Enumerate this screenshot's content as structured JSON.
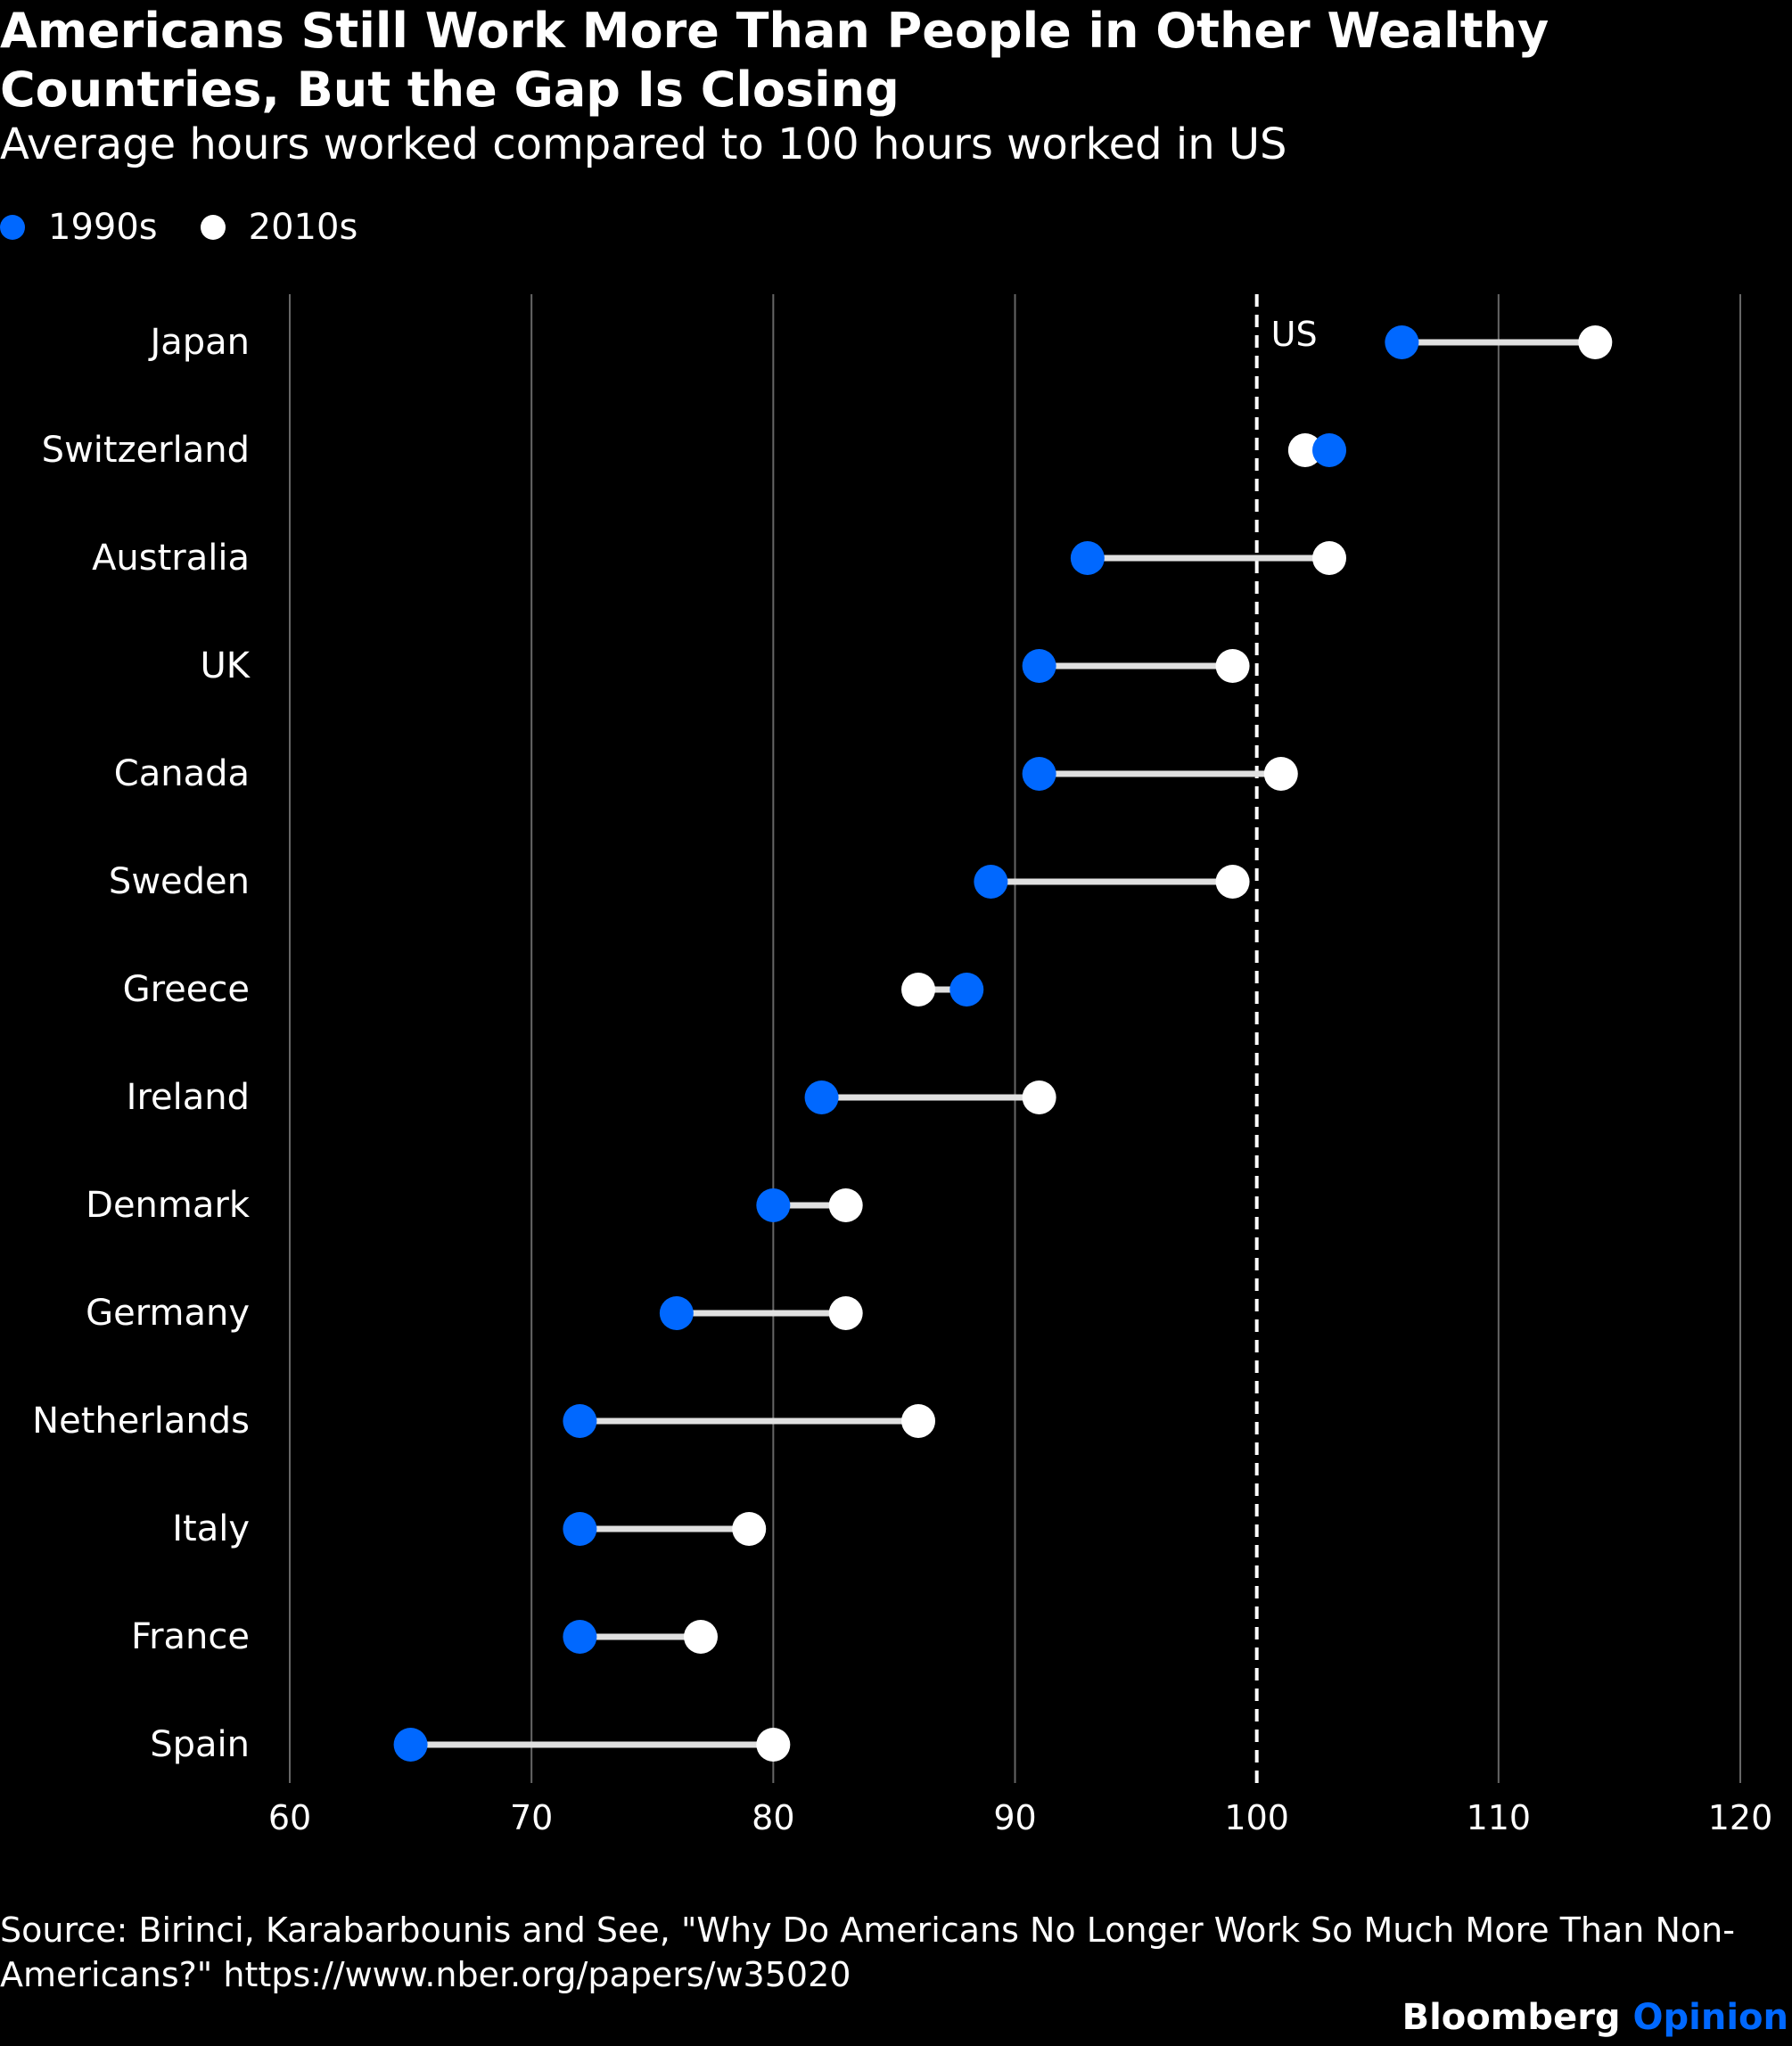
{
  "chart_data": {
    "type": "dumbbell",
    "title": "Americans Still Work More Than People in Other Wealthy Countries, But the Gap Is Closing",
    "subtitle": "Average hours worked compared to 100 hours worked in US",
    "legend": {
      "placement": "top-left",
      "entries": [
        {
          "name": "1990s",
          "color": "#0068ff"
        },
        {
          "name": "2010s",
          "color": "#ffffff"
        }
      ]
    },
    "categories": [
      "Japan",
      "Switzerland",
      "Australia",
      "UK",
      "Canada",
      "Sweden",
      "Greece",
      "Ireland",
      "Denmark",
      "Germany",
      "Netherlands",
      "Italy",
      "France",
      "Spain"
    ],
    "series": [
      {
        "name": "1990s",
        "color": "#0068ff",
        "values": [
          106,
          103,
          93,
          91,
          91,
          89,
          88,
          82,
          80,
          76,
          72,
          72,
          72,
          65
        ]
      },
      {
        "name": "2010s",
        "color": "#ffffff",
        "values": [
          114,
          102,
          103,
          99,
          101,
          99,
          86,
          91,
          83,
          83,
          86,
          79,
          77,
          80
        ]
      }
    ],
    "xlim": [
      60,
      120
    ],
    "xticks": [
      "60",
      "70",
      "80",
      "90",
      "100",
      "110",
      "120"
    ],
    "grid": true,
    "reference_line": {
      "value": 100,
      "label": "US",
      "style": "dashed"
    }
  },
  "source": "Source: Birinci, Karabarbounis and See, \"Why Do Americans No Longer Work So Much More Than Non-Americans?\" https://www.nber.org/papers/w35020",
  "brand": {
    "name": "Bloomberg",
    "product": "Opinion",
    "product_color": "#0068ff"
  },
  "colors": {
    "background": "#000000",
    "connector": "#e0e0e0",
    "gridline": "#666666"
  }
}
